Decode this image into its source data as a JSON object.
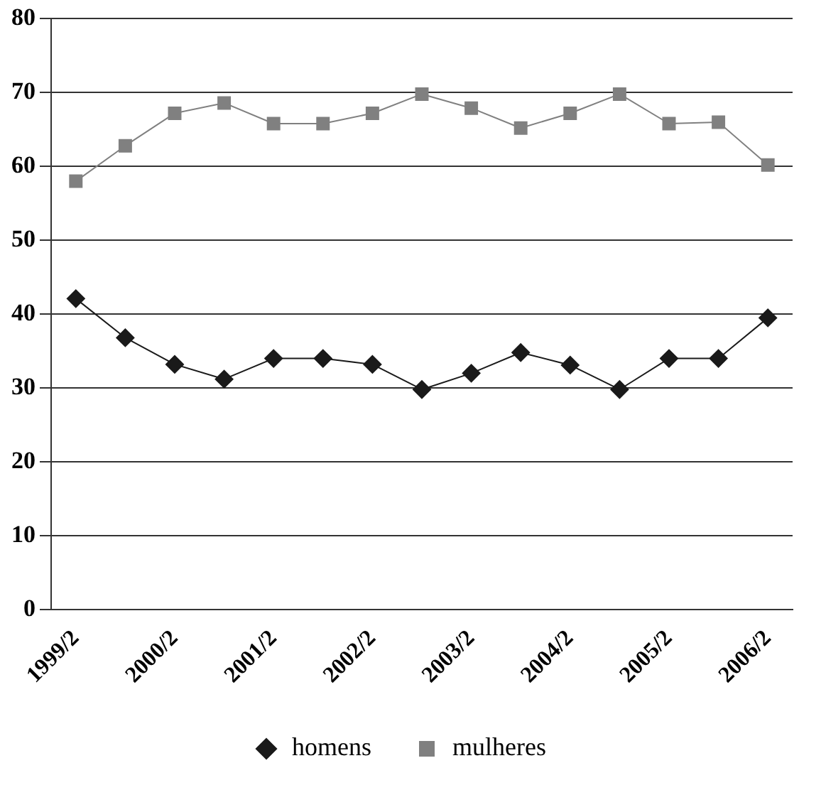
{
  "chart_data": {
    "type": "line",
    "categories": [
      "1999/2",
      null,
      "2000/2",
      null,
      "2001/2",
      null,
      "2002/2",
      null,
      "2003/2",
      null,
      "2004/2",
      null,
      "2005/2",
      null,
      "2006/2"
    ],
    "series": [
      {
        "name": "homens",
        "color": "#1a1a1a",
        "marker": "diamond",
        "values": [
          42.1,
          36.8,
          33.2,
          31.2,
          34.0,
          34.0,
          33.2,
          29.8,
          32.0,
          34.8,
          33.1,
          29.8,
          34.0,
          34.0,
          39.5
        ]
      },
      {
        "name": "mulheres",
        "color": "#808080",
        "marker": "square",
        "values": [
          58.0,
          62.8,
          67.2,
          68.6,
          65.8,
          65.8,
          67.2,
          69.8,
          67.9,
          65.2,
          67.2,
          69.8,
          65.8,
          66.0,
          60.2
        ]
      }
    ],
    "ylim": [
      0,
      80
    ],
    "yticks": [
      0,
      10,
      20,
      30,
      40,
      50,
      60,
      70,
      80
    ],
    "grid": "y",
    "legend": "bottom",
    "line_style": "solid"
  }
}
